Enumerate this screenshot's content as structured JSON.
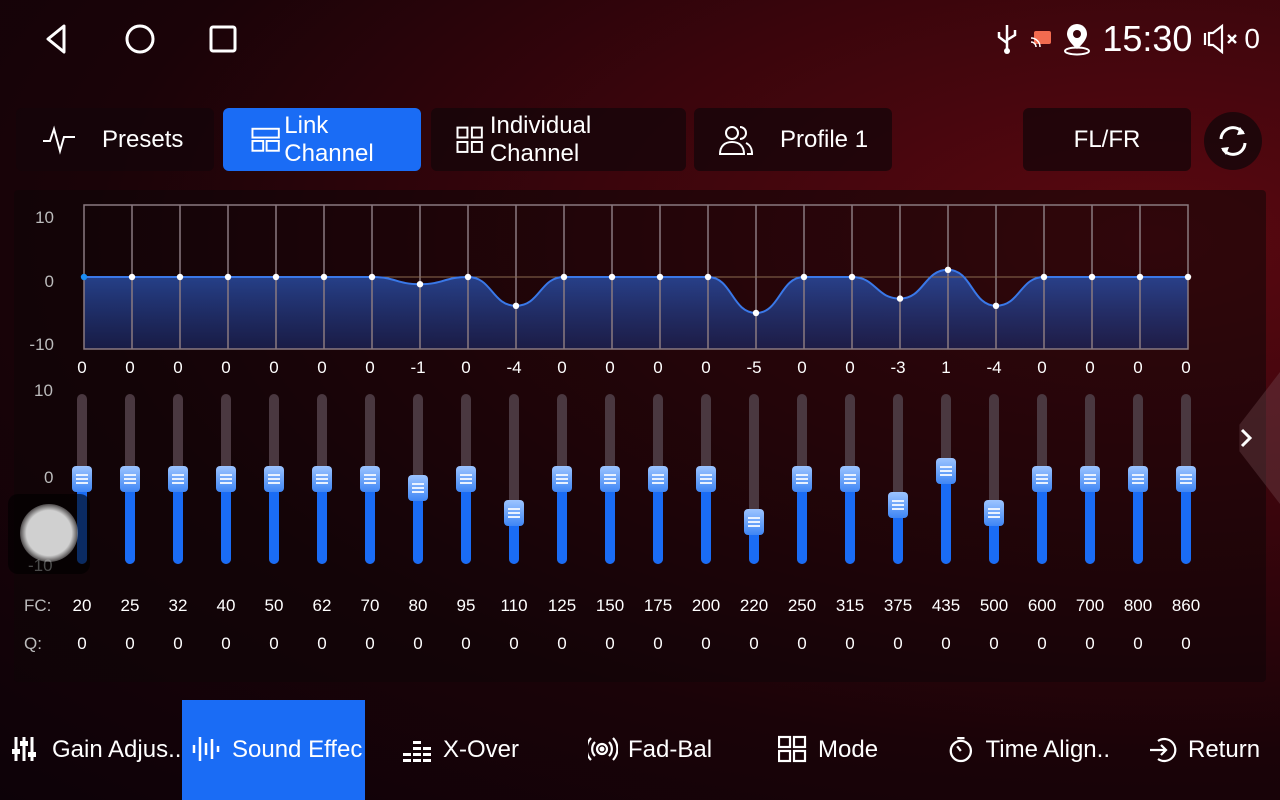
{
  "status": {
    "time": "15:30",
    "volume": "0",
    "icons": [
      "usb-icon",
      "cast-icon",
      "location-icon",
      "volume-mute-icon"
    ]
  },
  "tabs": [
    {
      "label": "Presets",
      "icon": "waveform-icon"
    },
    {
      "label": "Link Channel",
      "icon": "link-channel-icon",
      "active": true
    },
    {
      "label": "Individual Channel",
      "icon": "grid-icon"
    },
    {
      "label": "Profile 1",
      "icon": "users-icon"
    }
  ],
  "channel": "FL/FR",
  "accent": "#1a6cf5",
  "chart_data": {
    "type": "line",
    "ylim": [
      -10,
      10
    ],
    "yticks": [
      "10",
      "0",
      "-10"
    ],
    "grid": true,
    "x": [
      "20",
      "25",
      "32",
      "40",
      "50",
      "62",
      "70",
      "80",
      "95",
      "110",
      "125",
      "150",
      "175",
      "200",
      "220",
      "250",
      "315",
      "375",
      "435",
      "500",
      "600",
      "700",
      "800",
      "860"
    ],
    "values": [
      0,
      0,
      0,
      0,
      0,
      0,
      0,
      -1,
      0,
      -4,
      0,
      0,
      0,
      0,
      -5,
      0,
      0,
      -3,
      1,
      -4,
      0,
      0,
      0,
      0
    ]
  },
  "slider_scale": [
    "10",
    "0",
    "-10"
  ],
  "fc_label": "FC:",
  "q_label": "Q:",
  "q_values": [
    0,
    0,
    0,
    0,
    0,
    0,
    0,
    0,
    0,
    0,
    0,
    0,
    0,
    0,
    0,
    0,
    0,
    0,
    0,
    0,
    0,
    0,
    0,
    0
  ],
  "bottom_nav": [
    {
      "label": "Gain Adjus..",
      "icon": "sliders-icon"
    },
    {
      "label": "Sound Effec",
      "icon": "sound-wave-icon",
      "active": true
    },
    {
      "label": "X-Over",
      "icon": "equalizer-bars-icon"
    },
    {
      "label": "Fad-Bal",
      "icon": "speaker-radiate-icon"
    },
    {
      "label": "Mode",
      "icon": "mode-icon"
    },
    {
      "label": "Time Align..",
      "icon": "timer-icon"
    },
    {
      "label": "Return",
      "icon": "return-icon"
    }
  ]
}
